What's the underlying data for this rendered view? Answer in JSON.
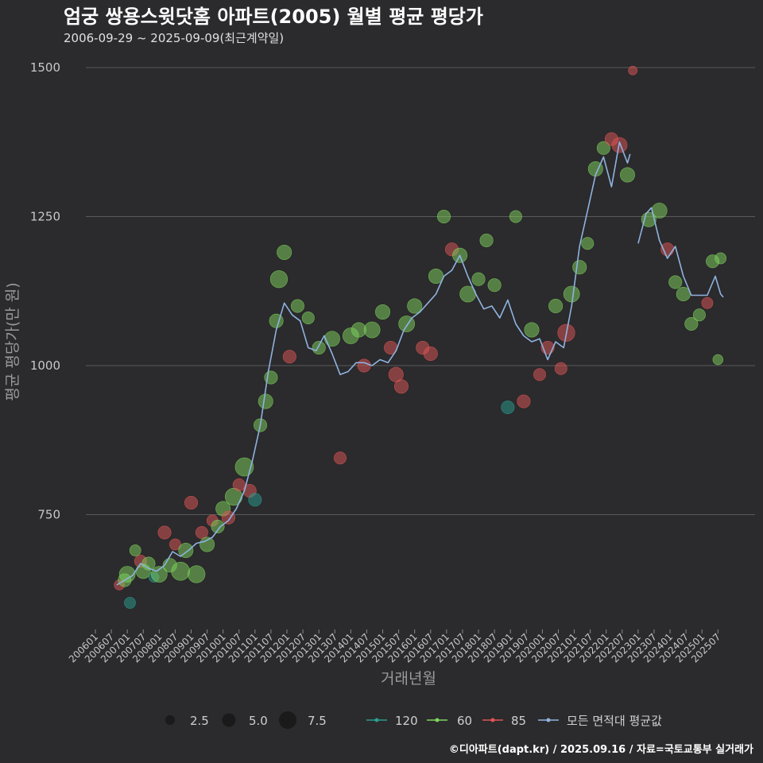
{
  "chart_data": {
    "type": "scatter",
    "title": "엄궁 쌍용스윗닷홈 아파트(2005) 월별 평균 평당가",
    "subtitle": "2006-09-29 ~ 2025-09-09(최근계약일)",
    "xlabel": "거래년월",
    "ylabel": "평균 평당가(만 원)",
    "ylim": [
      560,
      1520
    ],
    "yticks": [
      750,
      1000,
      1250,
      1500
    ],
    "x_range": [
      "2006-01",
      "2025-09"
    ],
    "xticks": [
      "200601",
      "200607",
      "200701",
      "200707",
      "200801",
      "200807",
      "200901",
      "200907",
      "201001",
      "201007",
      "201101",
      "201107",
      "201201",
      "201207",
      "201301",
      "201307",
      "201401",
      "201407",
      "201501",
      "201507",
      "201601",
      "201607",
      "201701",
      "201707",
      "201801",
      "201807",
      "201901",
      "201907",
      "202001",
      "202007",
      "202101",
      "202107",
      "202201",
      "202207",
      "202301",
      "202307",
      "202401",
      "202407",
      "202501",
      "202507"
    ],
    "colors": {
      "60": "#7fd45e",
      "85": "#e05555",
      "120": "#2a9d8f",
      "avg_line": "#8fb3e0",
      "grid": "#5a5a5a",
      "text": "#d8d8d8"
    },
    "legend": {
      "size_title": "",
      "sizes": [
        {
          "label": "2.5",
          "value": 2.5
        },
        {
          "label": "5.0",
          "value": 5.0
        },
        {
          "label": "7.5",
          "value": 7.5
        }
      ],
      "series": [
        {
          "key": "120",
          "label": "120"
        },
        {
          "key": "60",
          "label": "60"
        },
        {
          "key": "85",
          "label": "85"
        },
        {
          "key": "avg",
          "label": "모든 면적대 평균값"
        }
      ]
    },
    "avg_line": [
      [
        "2006-09",
        632
      ],
      [
        "2006-12",
        640
      ],
      [
        "2007-03",
        648
      ],
      [
        "2007-06",
        668
      ],
      [
        "2007-09",
        660
      ],
      [
        "2007-12",
        655
      ],
      [
        "2008-03",
        665
      ],
      [
        "2008-06",
        688
      ],
      [
        "2008-09",
        680
      ],
      [
        "2008-12",
        690
      ],
      [
        "2009-03",
        702
      ],
      [
        "2009-06",
        705
      ],
      [
        "2009-09",
        712
      ],
      [
        "2009-12",
        730
      ],
      [
        "2010-03",
        740
      ],
      [
        "2010-06",
        760
      ],
      [
        "2010-09",
        790
      ],
      [
        "2010-12",
        840
      ],
      [
        "2011-03",
        900
      ],
      [
        "2011-06",
        990
      ],
      [
        "2011-09",
        1060
      ],
      [
        "2011-12",
        1105
      ],
      [
        "2012-03",
        1085
      ],
      [
        "2012-06",
        1075
      ],
      [
        "2012-09",
        1030
      ],
      [
        "2012-12",
        1025
      ],
      [
        "2013-03",
        1050
      ],
      [
        "2013-06",
        1020
      ],
      [
        "2013-09",
        985
      ],
      [
        "2013-12",
        990
      ],
      [
        "2014-03",
        1005
      ],
      [
        "2014-06",
        1005
      ],
      [
        "2014-09",
        1000
      ],
      [
        "2014-12",
        1010
      ],
      [
        "2015-03",
        1005
      ],
      [
        "2015-06",
        1025
      ],
      [
        "2015-09",
        1060
      ],
      [
        "2015-12",
        1080
      ],
      [
        "2016-03",
        1090
      ],
      [
        "2016-06",
        1105
      ],
      [
        "2016-09",
        1120
      ],
      [
        "2016-12",
        1150
      ],
      [
        "2017-03",
        1160
      ],
      [
        "2017-06",
        1185
      ],
      [
        "2017-09",
        1150
      ],
      [
        "2017-12",
        1120
      ],
      [
        "2018-03",
        1095
      ],
      [
        "2018-06",
        1100
      ],
      [
        "2018-09",
        1080
      ],
      [
        "2018-12",
        1110
      ],
      [
        "2019-03",
        1070
      ],
      [
        "2019-06",
        1050
      ],
      [
        "2019-09",
        1040
      ],
      [
        "2019-12",
        1045
      ],
      [
        "2020-03",
        1010
      ],
      [
        "2020-06",
        1040
      ],
      [
        "2020-09",
        1030
      ],
      [
        "2020-12",
        1100
      ],
      [
        "2021-03",
        1200
      ],
      [
        "2021-06",
        1260
      ],
      [
        "2021-09",
        1320
      ],
      [
        "2021-12",
        1350
      ],
      [
        "2022-03",
        1300
      ],
      [
        "2022-06",
        1375
      ],
      [
        "2022-09",
        1340
      ],
      [
        "2022-10",
        1355
      ],
      null,
      [
        "2023-01",
        1205
      ],
      [
        "2023-04",
        1255
      ],
      [
        "2023-06",
        1265
      ],
      [
        "2023-09",
        1210
      ],
      [
        "2023-12",
        1180
      ],
      [
        "2024-03",
        1200
      ],
      [
        "2024-06",
        1150
      ],
      [
        "2024-09",
        1118
      ],
      [
        "2024-12",
        1118
      ],
      [
        "2025-03",
        1118
      ],
      [
        "2025-06",
        1150
      ],
      [
        "2025-08",
        1120
      ],
      [
        "2025-09",
        1115
      ]
    ],
    "points": [
      [
        "2006-10",
        632,
        "85",
        1.5
      ],
      [
        "2006-12",
        640,
        "60",
        3
      ],
      [
        "2007-01",
        650,
        "60",
        5
      ],
      [
        "2007-02",
        602,
        "120",
        2
      ],
      [
        "2007-04",
        690,
        "60",
        2
      ],
      [
        "2007-06",
        672,
        "85",
        2.5
      ],
      [
        "2007-07",
        655,
        "60",
        4
      ],
      [
        "2007-09",
        668,
        "60",
        3
      ],
      [
        "2007-11",
        645,
        "120",
        1.5
      ],
      [
        "2008-01",
        650,
        "60",
        5
      ],
      [
        "2008-03",
        720,
        "85",
        3
      ],
      [
        "2008-05",
        665,
        "60",
        3.5
      ],
      [
        "2008-07",
        700,
        "85",
        2
      ],
      [
        "2008-09",
        655,
        "60",
        7
      ],
      [
        "2008-11",
        690,
        "60",
        4
      ],
      [
        "2009-01",
        770,
        "85",
        3
      ],
      [
        "2009-03",
        650,
        "60",
        6
      ],
      [
        "2009-05",
        720,
        "85",
        2.5
      ],
      [
        "2009-07",
        700,
        "60",
        4
      ],
      [
        "2009-09",
        740,
        "85",
        2
      ],
      [
        "2009-11",
        730,
        "60",
        3
      ],
      [
        "2010-01",
        760,
        "60",
        4
      ],
      [
        "2010-03",
        745,
        "85",
        3
      ],
      [
        "2010-05",
        780,
        "60",
        6
      ],
      [
        "2010-07",
        800,
        "85",
        2.5
      ],
      [
        "2010-09",
        830,
        "60",
        7
      ],
      [
        "2010-11",
        790,
        "85",
        3
      ],
      [
        "2011-01",
        775,
        "120",
        3
      ],
      [
        "2011-03",
        900,
        "60",
        3
      ],
      [
        "2011-05",
        940,
        "60",
        4
      ],
      [
        "2011-07",
        980,
        "60",
        3
      ],
      [
        "2011-09",
        1075,
        "60",
        3.5
      ],
      [
        "2011-10",
        1145,
        "60",
        6
      ],
      [
        "2011-12",
        1190,
        "60",
        4
      ],
      [
        "2012-02",
        1015,
        "85",
        3
      ],
      [
        "2012-05",
        1100,
        "60",
        3
      ],
      [
        "2012-09",
        1080,
        "60",
        2.5
      ],
      [
        "2013-01",
        1030,
        "60",
        3
      ],
      [
        "2013-06",
        1045,
        "60",
        4.5
      ],
      [
        "2013-09",
        845,
        "85",
        2.5
      ],
      [
        "2014-01",
        1050,
        "60",
        5
      ],
      [
        "2014-04",
        1060,
        "60",
        4
      ],
      [
        "2014-06",
        1000,
        "85",
        3
      ],
      [
        "2014-09",
        1060,
        "60",
        5
      ],
      [
        "2015-01",
        1090,
        "60",
        4
      ],
      [
        "2015-04",
        1030,
        "85",
        3
      ],
      [
        "2015-06",
        985,
        "85",
        4
      ],
      [
        "2015-08",
        965,
        "85",
        3.5
      ],
      [
        "2015-10",
        1070,
        "60",
        5
      ],
      [
        "2016-01",
        1100,
        "60",
        4
      ],
      [
        "2016-04",
        1030,
        "85",
        3
      ],
      [
        "2016-07",
        1020,
        "85",
        3.5
      ],
      [
        "2016-09",
        1150,
        "60",
        4
      ],
      [
        "2016-12",
        1250,
        "60",
        3
      ],
      [
        "2017-03",
        1195,
        "85",
        3
      ],
      [
        "2017-06",
        1185,
        "60",
        4
      ],
      [
        "2017-09",
        1120,
        "60",
        5
      ],
      [
        "2018-01",
        1145,
        "60",
        3
      ],
      [
        "2018-04",
        1210,
        "60",
        3
      ],
      [
        "2018-07",
        1135,
        "60",
        3
      ],
      [
        "2018-12",
        930,
        "120",
        3
      ],
      [
        "2019-03",
        1250,
        "60",
        2.5
      ],
      [
        "2019-06",
        940,
        "85",
        3
      ],
      [
        "2019-09",
        1060,
        "60",
        4
      ],
      [
        "2019-12",
        985,
        "85",
        2.5
      ],
      [
        "2020-03",
        1030,
        "85",
        3
      ],
      [
        "2020-06",
        1100,
        "60",
        3.5
      ],
      [
        "2020-08",
        995,
        "85",
        2.5
      ],
      [
        "2020-10",
        1055,
        "85",
        6
      ],
      [
        "2020-12",
        1120,
        "60",
        5
      ],
      [
        "2021-03",
        1165,
        "60",
        3.5
      ],
      [
        "2021-06",
        1205,
        "60",
        2.5
      ],
      [
        "2021-09",
        1330,
        "60",
        4
      ],
      [
        "2021-12",
        1365,
        "60",
        3
      ],
      [
        "2022-03",
        1380,
        "85",
        3
      ],
      [
        "2022-06",
        1370,
        "85",
        4.5
      ],
      [
        "2022-09",
        1320,
        "60",
        4
      ],
      [
        "2022-11",
        1495,
        "85",
        1
      ],
      [
        "2023-05",
        1245,
        "60",
        4
      ],
      [
        "2023-09",
        1260,
        "60",
        4.5
      ],
      [
        "2023-12",
        1195,
        "85",
        3
      ],
      [
        "2024-03",
        1140,
        "60",
        3
      ],
      [
        "2024-06",
        1120,
        "60",
        3.5
      ],
      [
        "2024-09",
        1070,
        "60",
        3
      ],
      [
        "2024-12",
        1085,
        "60",
        2.5
      ],
      [
        "2025-03",
        1105,
        "85",
        2
      ],
      [
        "2025-05",
        1175,
        "60",
        3
      ],
      [
        "2025-07",
        1010,
        "60",
        1.5
      ],
      [
        "2025-08",
        1180,
        "60",
        2
      ]
    ]
  },
  "footer": {
    "credit": "©디아파트(dapt.kr) / 2025.09.16 / 자료=국토교통부 실거래가"
  }
}
